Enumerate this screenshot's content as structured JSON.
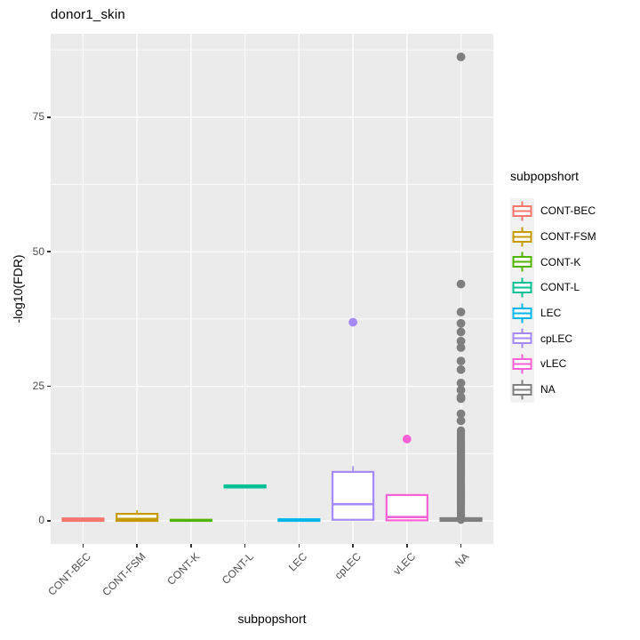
{
  "title": "donor1_skin",
  "axes": {
    "y_title": "-log10(FDR)",
    "x_title": "subpopshort",
    "y_ticks": [
      0,
      25,
      50,
      75
    ],
    "y_tick_labels": [
      "0",
      "25",
      "50",
      "75"
    ],
    "x_tick_labels": [
      "CONT-BEC",
      "CONT-FSM",
      "CONT-K",
      "CONT-L",
      "LEC",
      "cpLEC",
      "vLEC",
      "NA"
    ]
  },
  "legend": {
    "title": "subpopshort",
    "items": [
      {
        "label": "CONT-BEC",
        "color": "#F8766D"
      },
      {
        "label": "CONT-FSM",
        "color": "#C49A00"
      },
      {
        "label": "CONT-K",
        "color": "#53B400"
      },
      {
        "label": "CONT-L",
        "color": "#00C094"
      },
      {
        "label": "LEC",
        "color": "#00B6EB"
      },
      {
        "label": "cpLEC",
        "color": "#A58AFF"
      },
      {
        "label": "vLEC",
        "color": "#FB61D7"
      },
      {
        "label": "NA",
        "color": "#7F7F7F"
      }
    ]
  },
  "style_colors": {
    "panel_background": "#EBEBEB",
    "gridline": "#FFFFFF",
    "legend_key_background": "#F2F2F2",
    "tick_text": "#4D4D4D",
    "tick_mark": "#333333",
    "title_text": "#000000"
  },
  "chart_data": {
    "type": "boxplot",
    "title": "donor1_skin",
    "xlabel": "subpopshort",
    "ylabel": "-log10(FDR)",
    "ylim": [
      -4.3,
      90.5
    ],
    "grid": "on",
    "legend_position": "right",
    "y_major_gridlines": [
      0,
      25,
      50,
      75
    ],
    "y_minor_gridlines": [
      12.5,
      37.5,
      62.5,
      87.5
    ],
    "categories": [
      "CONT-BEC",
      "CONT-FSM",
      "CONT-K",
      "CONT-L",
      "LEC",
      "cpLEC",
      "vLEC",
      "NA"
    ],
    "series": [
      {
        "category": "CONT-BEC",
        "color": "#F8766D",
        "whisker_low": 0,
        "q1": 0,
        "median": 0.2,
        "q3": 0.45,
        "whisker_high": 0.45,
        "outliers": []
      },
      {
        "category": "CONT-FSM",
        "color": "#C49A00",
        "whisker_low": 0,
        "q1": 0,
        "median": 0.35,
        "q3": 1.3,
        "whisker_high": 2.0,
        "outliers": []
      },
      {
        "category": "CONT-K",
        "color": "#53B400",
        "whisker_low": 0,
        "q1": 0,
        "median": 0.1,
        "q3": 0.2,
        "whisker_high": 0.2,
        "outliers": []
      },
      {
        "category": "CONT-L",
        "color": "#00C094",
        "whisker_low": 6.2,
        "q1": 6.2,
        "median": 6.4,
        "q3": 6.6,
        "whisker_high": 6.6,
        "outliers": []
      },
      {
        "category": "LEC",
        "color": "#00B6EB",
        "whisker_low": 0,
        "q1": 0,
        "median": 0.15,
        "q3": 0.3,
        "whisker_high": 0.3,
        "outliers": []
      },
      {
        "category": "cpLEC",
        "color": "#A58AFF",
        "whisker_low": 0.2,
        "q1": 0.2,
        "median": 3.1,
        "q3": 9.1,
        "whisker_high": 10.2,
        "outliers": [
          36.9
        ]
      },
      {
        "category": "vLEC",
        "color": "#FB61D7",
        "whisker_low": 0.1,
        "q1": 0.1,
        "median": 0.7,
        "q3": 4.8,
        "whisker_high": 4.8,
        "outliers": [
          15.2
        ]
      },
      {
        "category": "NA",
        "color": "#7F7F7F",
        "whisker_low": 0,
        "q1": 0,
        "median": 0.25,
        "q3": 0.5,
        "whisker_high": 0.5,
        "outliers": [
          86.2,
          44.0,
          38.8,
          36.7,
          35.1,
          33.4,
          32.2,
          29.7,
          28.1,
          25.6,
          24.3,
          23.0,
          22.7,
          19.9,
          18.6
        ],
        "outlier_stack": {
          "min": 0.2,
          "max": 16.8,
          "count": 60
        }
      }
    ]
  }
}
